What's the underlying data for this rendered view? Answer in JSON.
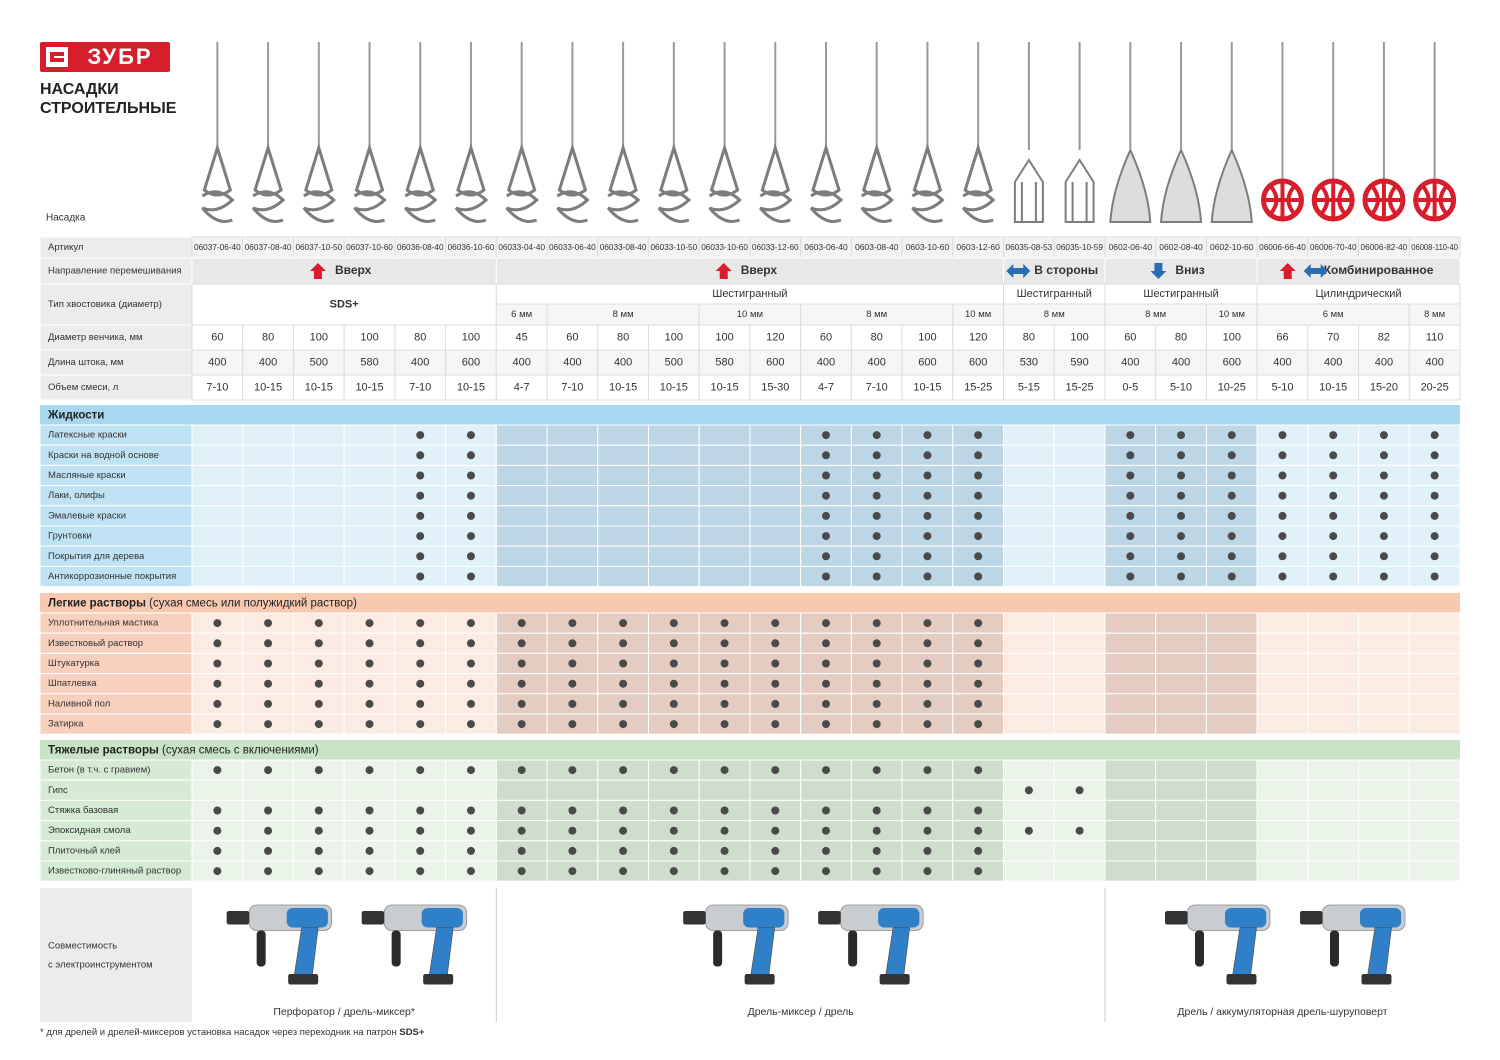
{
  "header": {
    "logo": "ЗУБР",
    "title_lines": [
      "НАСАДКИ",
      "СТРОИТЕЛЬНЫЕ"
    ],
    "nozzle_label": "Насадка"
  },
  "specs": {
    "labels": {
      "article": "Артикул",
      "direction": "Направление перемешивания",
      "shank": "Тип хвостовика (диаметр)",
      "diameter": "Диаметр венчика, мм",
      "length": "Длина штока, мм",
      "volume": "Объем смеси, л"
    },
    "articles": [
      "06037-06-40",
      "06037-08-40",
      "06037-10-50",
      "06037-10-60",
      "06036-08-40",
      "06036-10-60",
      "06033-04-40",
      "06033-06-40",
      "06033-08-40",
      "06033-10-50",
      "06033-10-60",
      "06033-12-60",
      "0603-06-40",
      "0603-08-40",
      "0603-10-60",
      "0603-12-60",
      "06035-08-53",
      "06035-10-59",
      "0602-06-40",
      "0602-08-40",
      "0602-10-60",
      "06006-66-40",
      "06006-70-40",
      "06006-82-40",
      "06008-110-40"
    ],
    "diameters": [
      60,
      80,
      100,
      100,
      80,
      100,
      45,
      60,
      80,
      100,
      100,
      120,
      60,
      80,
      100,
      120,
      80,
      100,
      60,
      80,
      100,
      66,
      70,
      82,
      110
    ],
    "lengths": [
      400,
      400,
      500,
      580,
      400,
      600,
      400,
      400,
      400,
      500,
      580,
      600,
      400,
      400,
      600,
      600,
      530,
      590,
      400,
      400,
      600,
      400,
      400,
      400,
      400
    ],
    "volumes": [
      "7-10",
      "10-15",
      "10-15",
      "10-15",
      "7-10",
      "10-15",
      "4-7",
      "7-10",
      "10-15",
      "10-15",
      "10-15",
      "15-30",
      "4-7",
      "7-10",
      "10-15",
      "15-25",
      "5-15",
      "15-25",
      "0-5",
      "5-10",
      "10-25",
      "5-10",
      "10-15",
      "15-20",
      "20-25"
    ],
    "groups": [
      {
        "direction": "Вверх",
        "arrow": "up",
        "shank": "SDS+",
        "span": 6,
        "nozzle": "spiral",
        "nozzle_color": "#7d7d7d"
      },
      {
        "direction": "Вверх",
        "arrow": "up",
        "shank": "Шестигранный",
        "span": 10,
        "nozzle": "spiral",
        "nozzle_color": "#7d7d7d",
        "sizes": [
          {
            "label": "6 мм",
            "span": 1
          },
          {
            "label": "8 мм",
            "span": 3
          },
          {
            "label": "10 мм",
            "span": 2
          },
          {
            "label": "8 мм",
            "span": 3
          },
          {
            "label": "10 мм",
            "span": 1
          }
        ]
      },
      {
        "direction": "В стороны",
        "arrow": "side",
        "shank": "Шестигранный",
        "span": 2,
        "nozzle": "cage",
        "nozzle_color": "#7d7d7d",
        "sizes": [
          {
            "label": "8 мм",
            "span": 2
          }
        ]
      },
      {
        "direction": "Вниз",
        "arrow": "down",
        "shank": "Шестигранный",
        "span": 3,
        "nozzle": "paddle",
        "nozzle_color": "#7d7d7d",
        "sizes": [
          {
            "label": "8 мм",
            "span": 2
          },
          {
            "label": "10 мм",
            "span": 1
          }
        ]
      },
      {
        "direction": "Комбинированное",
        "arrow": "combined",
        "shank": "Цилиндрический",
        "span": 4,
        "nozzle": "ball",
        "nozzle_color": "#d81e2c",
        "sizes": [
          {
            "label": "6 мм",
            "span": 3
          },
          {
            "label": "8 мм",
            "span": 1
          }
        ]
      }
    ]
  },
  "sections": [
    {
      "title": "Жидкости",
      "color": "#a7d8ef",
      "rows": [
        {
          "label": "Латексные краски",
          "dots": [
            false,
            false,
            false,
            false,
            true,
            true,
            false,
            false,
            false,
            false,
            false,
            false,
            true,
            true,
            true,
            true,
            false,
            false,
            true,
            true,
            true,
            true,
            true,
            true,
            true
          ]
        },
        {
          "label": "Краски на водной основе",
          "dots": [
            false,
            false,
            false,
            false,
            true,
            true,
            false,
            false,
            false,
            false,
            false,
            false,
            true,
            true,
            true,
            true,
            false,
            false,
            true,
            true,
            true,
            true,
            true,
            true,
            true
          ]
        },
        {
          "label": "Масляные краски",
          "dots": [
            false,
            false,
            false,
            false,
            true,
            true,
            false,
            false,
            false,
            false,
            false,
            false,
            true,
            true,
            true,
            true,
            false,
            false,
            true,
            true,
            true,
            true,
            true,
            true,
            true
          ]
        },
        {
          "label": "Лаки, олифы",
          "dots": [
            false,
            false,
            false,
            false,
            true,
            true,
            false,
            false,
            false,
            false,
            false,
            false,
            true,
            true,
            true,
            true,
            false,
            false,
            true,
            true,
            true,
            true,
            true,
            true,
            true
          ]
        },
        {
          "label": "Эмалевые краски",
          "dots": [
            false,
            false,
            false,
            false,
            true,
            true,
            false,
            false,
            false,
            false,
            false,
            false,
            true,
            true,
            true,
            true,
            false,
            false,
            true,
            true,
            true,
            true,
            true,
            true,
            true
          ]
        },
        {
          "label": "Грунтовки",
          "dots": [
            false,
            false,
            false,
            false,
            true,
            true,
            false,
            false,
            false,
            false,
            false,
            false,
            true,
            true,
            true,
            true,
            false,
            false,
            true,
            true,
            true,
            true,
            true,
            true,
            true
          ]
        },
        {
          "label": "Покрытия для дерева",
          "dots": [
            false,
            false,
            false,
            false,
            true,
            true,
            false,
            false,
            false,
            false,
            false,
            false,
            true,
            true,
            true,
            true,
            false,
            false,
            true,
            true,
            true,
            true,
            true,
            true,
            true
          ]
        },
        {
          "label": "Антикоррозионные покрытия",
          "dots": [
            false,
            false,
            false,
            false,
            true,
            true,
            false,
            false,
            false,
            false,
            false,
            false,
            true,
            true,
            true,
            true,
            false,
            false,
            true,
            true,
            true,
            true,
            true,
            true,
            true
          ]
        }
      ]
    },
    {
      "title": "Легкие растворы",
      "note": " (сухая смесь или полужидкий раствор)",
      "color": "#f7c9b1",
      "rows": [
        {
          "label": "Уплотнительная мастика",
          "dots": [
            true,
            true,
            true,
            true,
            true,
            true,
            true,
            true,
            true,
            true,
            true,
            true,
            true,
            true,
            true,
            true,
            false,
            false,
            false,
            false,
            false,
            false,
            false,
            false,
            false
          ]
        },
        {
          "label": "Известковый раствор",
          "dots": [
            true,
            true,
            true,
            true,
            true,
            true,
            true,
            true,
            true,
            true,
            true,
            true,
            true,
            true,
            true,
            true,
            false,
            false,
            false,
            false,
            false,
            false,
            false,
            false,
            false
          ]
        },
        {
          "label": "Штукатурка",
          "dots": [
            true,
            true,
            true,
            true,
            true,
            true,
            true,
            true,
            true,
            true,
            true,
            true,
            true,
            true,
            true,
            true,
            false,
            false,
            false,
            false,
            false,
            false,
            false,
            false,
            false
          ]
        },
        {
          "label": "Шпатлевка",
          "dots": [
            true,
            true,
            true,
            true,
            true,
            true,
            true,
            true,
            true,
            true,
            true,
            true,
            true,
            true,
            true,
            true,
            false,
            false,
            false,
            false,
            false,
            false,
            false,
            false,
            false
          ]
        },
        {
          "label": "Наливной пол",
          "dots": [
            true,
            true,
            true,
            true,
            true,
            true,
            true,
            true,
            true,
            true,
            true,
            true,
            true,
            true,
            true,
            true,
            false,
            false,
            false,
            false,
            false,
            false,
            false,
            false,
            false
          ]
        },
        {
          "label": "Затирка",
          "dots": [
            true,
            true,
            true,
            true,
            true,
            true,
            true,
            true,
            true,
            true,
            true,
            true,
            true,
            true,
            true,
            true,
            false,
            false,
            false,
            false,
            false,
            false,
            false,
            false,
            false
          ]
        }
      ]
    },
    {
      "title": "Тяжелые растворы",
      "note": " (сухая смесь с включениями)",
      "color": "#c9e3c6",
      "rows": [
        {
          "label": "Бетон (в т.ч. с гравием)",
          "dots": [
            true,
            true,
            true,
            true,
            true,
            true,
            true,
            true,
            true,
            true,
            true,
            true,
            true,
            true,
            true,
            true,
            false,
            false,
            false,
            false,
            false,
            false,
            false,
            false,
            false
          ]
        },
        {
          "label": "Гипс",
          "dots": [
            false,
            false,
            false,
            false,
            false,
            false,
            false,
            false,
            false,
            false,
            false,
            false,
            false,
            false,
            false,
            false,
            true,
            true,
            false,
            false,
            false,
            false,
            false,
            false,
            false
          ]
        },
        {
          "label": "Стяжка базовая",
          "dots": [
            true,
            true,
            true,
            true,
            true,
            true,
            true,
            true,
            true,
            true,
            true,
            true,
            true,
            true,
            true,
            true,
            false,
            false,
            false,
            false,
            false,
            false,
            false,
            false,
            false
          ]
        },
        {
          "label": "Эпоксидная смола",
          "dots": [
            true,
            true,
            true,
            true,
            true,
            true,
            true,
            true,
            true,
            true,
            true,
            true,
            true,
            true,
            true,
            true,
            true,
            true,
            false,
            false,
            false,
            false,
            false,
            false,
            false
          ]
        },
        {
          "label": "Плиточный клей",
          "dots": [
            true,
            true,
            true,
            true,
            true,
            true,
            true,
            true,
            true,
            true,
            true,
            true,
            true,
            true,
            true,
            true,
            false,
            false,
            false,
            false,
            false,
            false,
            false,
            false,
            false
          ]
        },
        {
          "label": "Известково-глиняный раствор",
          "dots": [
            true,
            true,
            true,
            true,
            true,
            true,
            true,
            true,
            true,
            true,
            true,
            true,
            true,
            true,
            true,
            true,
            false,
            false,
            false,
            false,
            false,
            false,
            false,
            false,
            false
          ]
        }
      ]
    }
  ],
  "compat": {
    "label_lines": [
      "Совместимость",
      "с электроинструментом"
    ],
    "groups": [
      {
        "label": "Перфоратор / дрель-миксер*",
        "span": 6
      },
      {
        "label": "Дрель-миксер / дрель",
        "span": 12
      },
      {
        "label": "Дрель / аккумуляторная дрель-шуруповерт",
        "span": 7
      }
    ]
  },
  "footnote": {
    "text": "* для дрелей и дрелей-миксеров установка насадок через переходник на патрон ",
    "bold": "SDS+"
  }
}
